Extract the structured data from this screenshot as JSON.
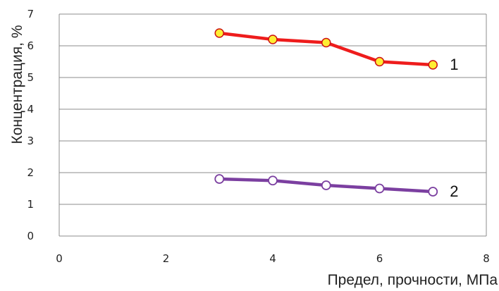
{
  "chart_data": {
    "type": "line",
    "title": "",
    "xlabel": "Предел, прочности, МПа",
    "ylabel": "Концентрация, %",
    "xlim": [
      0,
      8
    ],
    "ylim": [
      0,
      7
    ],
    "x_ticks": [
      "0",
      "2",
      "4",
      "6",
      "8"
    ],
    "y_ticks": [
      "0",
      "1",
      "2",
      "3",
      "4",
      "5",
      "6",
      "7"
    ],
    "grid": "horizontal",
    "series": [
      {
        "name": "1",
        "x": [
          3,
          4,
          5,
          6,
          7
        ],
        "values": [
          6.4,
          6.2,
          6.1,
          5.5,
          5.4
        ],
        "line_color": "#ee1c1c",
        "marker_fill": "#ffee33",
        "marker_stroke": "#cc1111"
      },
      {
        "name": "2",
        "x": [
          3,
          4,
          5,
          6,
          7
        ],
        "values": [
          1.8,
          1.75,
          1.6,
          1.5,
          1.4
        ],
        "line_color": "#7b3fa0",
        "marker_fill": "#ffffff",
        "marker_stroke": "#7b3fa0"
      }
    ]
  }
}
